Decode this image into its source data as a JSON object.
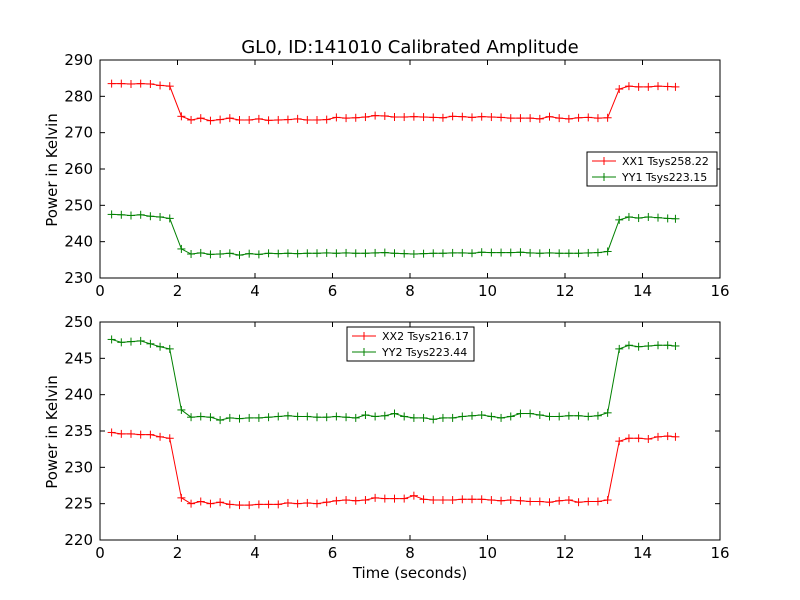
{
  "figure": {
    "title": "GL0, ID:141010 Calibrated Amplitude",
    "xlabel": "Time (seconds)"
  },
  "chart_data": [
    {
      "type": "line",
      "ylabel": "Power in Kelvin",
      "xlim": [
        0,
        16
      ],
      "ylim": [
        230,
        290
      ],
      "xticks": [
        "0",
        "2",
        "4",
        "6",
        "8",
        "10",
        "12",
        "14",
        "16"
      ],
      "yticks": [
        "230",
        "240",
        "250",
        "260",
        "270",
        "280",
        "290"
      ],
      "legend_position": "center-right",
      "series": [
        {
          "name": "XX1 Tsys258.22",
          "color": "#ff0000",
          "x": [
            0.3,
            0.55,
            0.8,
            1.05,
            1.3,
            1.55,
            1.8,
            2.1,
            2.35,
            2.6,
            2.85,
            3.1,
            3.35,
            3.6,
            3.85,
            4.1,
            4.35,
            4.6,
            4.85,
            5.1,
            5.35,
            5.6,
            5.85,
            6.1,
            6.35,
            6.6,
            6.85,
            7.1,
            7.35,
            7.6,
            7.85,
            8.1,
            8.35,
            8.6,
            8.85,
            9.1,
            9.35,
            9.6,
            9.85,
            10.1,
            10.35,
            10.6,
            10.85,
            11.1,
            11.35,
            11.6,
            11.85,
            12.1,
            12.35,
            12.6,
            12.85,
            13.1,
            13.4,
            13.65,
            13.9,
            14.15,
            14.4,
            14.65,
            14.85
          ],
          "values": [
            283.5,
            283.5,
            283.4,
            283.5,
            283.4,
            283.0,
            282.8,
            274.5,
            273.5,
            274.0,
            273.3,
            273.6,
            274.0,
            273.5,
            273.5,
            273.8,
            273.4,
            273.5,
            273.6,
            273.8,
            273.5,
            273.5,
            273.6,
            274.2,
            274.0,
            274.1,
            274.3,
            274.7,
            274.6,
            274.3,
            274.3,
            274.4,
            274.3,
            274.2,
            274.1,
            274.5,
            274.4,
            274.2,
            274.4,
            274.3,
            274.2,
            274.0,
            274.0,
            274.0,
            273.8,
            274.4,
            274.0,
            273.8,
            274.1,
            274.2,
            274.0,
            274.1,
            282.0,
            282.8,
            282.6,
            282.6,
            282.8,
            282.7,
            282.6
          ]
        },
        {
          "name": "YY1 Tsys223.15",
          "color": "#008000",
          "x": [
            0.3,
            0.55,
            0.8,
            1.05,
            1.3,
            1.55,
            1.8,
            2.1,
            2.35,
            2.6,
            2.85,
            3.1,
            3.35,
            3.6,
            3.85,
            4.1,
            4.35,
            4.6,
            4.85,
            5.1,
            5.35,
            5.6,
            5.85,
            6.1,
            6.35,
            6.6,
            6.85,
            7.1,
            7.35,
            7.6,
            7.85,
            8.1,
            8.35,
            8.6,
            8.85,
            9.1,
            9.35,
            9.6,
            9.85,
            10.1,
            10.35,
            10.6,
            10.85,
            11.1,
            11.35,
            11.6,
            11.85,
            12.1,
            12.35,
            12.6,
            12.85,
            13.1,
            13.4,
            13.65,
            13.9,
            14.15,
            14.4,
            14.65,
            14.85
          ],
          "values": [
            247.5,
            247.4,
            247.2,
            247.4,
            247.0,
            246.8,
            246.4,
            238.0,
            236.6,
            236.9,
            236.5,
            236.6,
            236.8,
            236.3,
            236.7,
            236.5,
            236.8,
            236.7,
            236.8,
            236.7,
            236.8,
            236.8,
            236.9,
            236.8,
            236.9,
            236.8,
            236.8,
            236.9,
            237.0,
            236.8,
            236.7,
            236.6,
            236.7,
            236.8,
            236.8,
            236.9,
            236.9,
            236.8,
            237.1,
            237.0,
            237.0,
            237.0,
            237.1,
            236.9,
            236.8,
            236.9,
            236.8,
            236.8,
            236.8,
            236.9,
            237.0,
            237.3,
            246.0,
            246.8,
            246.5,
            246.8,
            246.6,
            246.4,
            246.3
          ]
        }
      ]
    },
    {
      "type": "line",
      "ylabel": "Power in Kelvin",
      "xlim": [
        0,
        16
      ],
      "ylim": [
        220,
        250
      ],
      "xticks": [
        "0",
        "2",
        "4",
        "6",
        "8",
        "10",
        "12",
        "14",
        "16"
      ],
      "yticks": [
        "220",
        "225",
        "230",
        "235",
        "240",
        "245",
        "250"
      ],
      "legend_position": "upper-center",
      "series": [
        {
          "name": "XX2 Tsys216.17",
          "color": "#ff0000",
          "x": [
            0.3,
            0.55,
            0.8,
            1.05,
            1.3,
            1.55,
            1.8,
            2.1,
            2.35,
            2.6,
            2.85,
            3.1,
            3.35,
            3.6,
            3.85,
            4.1,
            4.35,
            4.6,
            4.85,
            5.1,
            5.35,
            5.6,
            5.85,
            6.1,
            6.35,
            6.6,
            6.85,
            7.1,
            7.35,
            7.6,
            7.85,
            8.1,
            8.35,
            8.6,
            8.85,
            9.1,
            9.35,
            9.6,
            9.85,
            10.1,
            10.35,
            10.6,
            10.85,
            11.1,
            11.35,
            11.6,
            11.85,
            12.1,
            12.35,
            12.6,
            12.85,
            13.1,
            13.4,
            13.65,
            13.9,
            14.15,
            14.4,
            14.65,
            14.85
          ],
          "values": [
            234.8,
            234.6,
            234.6,
            234.5,
            234.5,
            234.2,
            234.0,
            225.8,
            225.0,
            225.3,
            225.0,
            225.2,
            224.9,
            224.8,
            224.8,
            224.9,
            224.9,
            224.9,
            225.1,
            225.0,
            225.1,
            225.0,
            225.2,
            225.4,
            225.5,
            225.4,
            225.5,
            225.8,
            225.7,
            225.7,
            225.7,
            226.1,
            225.6,
            225.5,
            225.5,
            225.5,
            225.6,
            225.6,
            225.6,
            225.5,
            225.4,
            225.5,
            225.4,
            225.3,
            225.3,
            225.2,
            225.4,
            225.5,
            225.2,
            225.3,
            225.3,
            225.5,
            233.6,
            234.0,
            234.0,
            233.9,
            234.2,
            234.3,
            234.2
          ]
        },
        {
          "name": "YY2 Tsys223.44",
          "color": "#008000",
          "x": [
            0.3,
            0.55,
            0.8,
            1.05,
            1.3,
            1.55,
            1.8,
            2.1,
            2.35,
            2.6,
            2.85,
            3.1,
            3.35,
            3.6,
            3.85,
            4.1,
            4.35,
            4.6,
            4.85,
            5.1,
            5.35,
            5.6,
            5.85,
            6.1,
            6.35,
            6.6,
            6.85,
            7.1,
            7.35,
            7.6,
            7.85,
            8.1,
            8.35,
            8.6,
            8.85,
            9.1,
            9.35,
            9.6,
            9.85,
            10.1,
            10.35,
            10.6,
            10.85,
            11.1,
            11.35,
            11.6,
            11.85,
            12.1,
            12.35,
            12.6,
            12.85,
            13.1,
            13.4,
            13.65,
            13.9,
            14.15,
            14.4,
            14.65,
            14.85
          ],
          "values": [
            247.6,
            247.2,
            247.3,
            247.4,
            247.0,
            246.6,
            246.3,
            237.9,
            236.9,
            237.0,
            236.9,
            236.5,
            236.8,
            236.7,
            236.8,
            236.8,
            236.9,
            237.0,
            237.1,
            237.0,
            237.0,
            236.9,
            236.9,
            237.0,
            236.9,
            236.8,
            237.2,
            237.0,
            237.1,
            237.4,
            237.0,
            236.8,
            236.8,
            236.6,
            236.8,
            236.8,
            237.0,
            237.1,
            237.2,
            237.0,
            236.8,
            237.0,
            237.4,
            237.4,
            237.2,
            237.0,
            237.0,
            237.1,
            237.1,
            237.0,
            237.1,
            237.5,
            246.3,
            246.8,
            246.6,
            246.7,
            246.8,
            246.8,
            246.7
          ]
        }
      ]
    }
  ]
}
